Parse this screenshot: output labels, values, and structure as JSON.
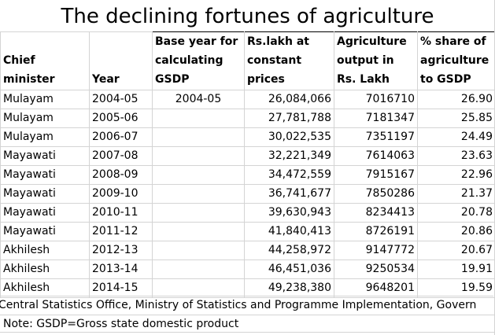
{
  "title": "The declining fortunes of agriculture",
  "columns": [
    "Chief minister",
    "Year",
    "Base year for calculating GSDP",
    "Rs.lakh at constant prices",
    "Agriculture output in Rs. Lakh",
    "% share of agriculture to GSDP"
  ],
  "source": "Central Statistics Office, Ministry of Statistics and Programme Implementation, Govern",
  "note": "Note: GSDP=Gross state domestic product",
  "chart_data": {
    "type": "table",
    "title": "The declining fortunes of agriculture",
    "columns": [
      "Chief minister",
      "Year",
      "Base year for calculating GSDP",
      "Rs.lakh at constant prices",
      "Agriculture output in Rs. Lakh",
      "% share of agriculture to GSDP"
    ],
    "rows": [
      [
        "Mulayam",
        "2004-05",
        "2004-05",
        "26,084,066",
        "7016710",
        "26.90"
      ],
      [
        "Mulayam",
        "2005-06",
        "",
        "27,781,788",
        "7181347",
        "25.85"
      ],
      [
        "Mulayam",
        "2006-07",
        "",
        "30,022,535",
        "7351197",
        "24.49"
      ],
      [
        "Mayawati",
        "2007-08",
        "",
        "32,221,349",
        "7614063",
        "23.63"
      ],
      [
        "Mayawati",
        "2008-09",
        "",
        "34,472,559",
        "7915167",
        "22.96"
      ],
      [
        "Mayawati",
        "2009-10",
        "",
        "36,741,677",
        "7850286",
        "21.37"
      ],
      [
        "Mayawati",
        "2010-11",
        "",
        "39,630,943",
        "8234413",
        "20.78"
      ],
      [
        "Mayawati",
        "2011-12",
        "",
        "41,840,413",
        "8726191",
        "20.86"
      ],
      [
        "Akhilesh",
        "2012-13",
        "",
        "44,258,972",
        "9147772",
        "20.67"
      ],
      [
        "Akhilesh",
        "2013-14",
        "",
        "46,451,036",
        "9250534",
        "19.91"
      ],
      [
        "Akhilesh",
        "2014-15",
        "",
        "49,238,380",
        "9648201",
        "19.59"
      ]
    ]
  }
}
